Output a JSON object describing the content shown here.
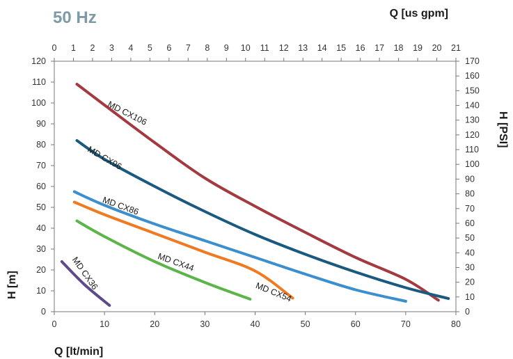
{
  "frequency_label": "50 Hz",
  "chart_data": {
    "type": "line",
    "xlabel": "Q [lt/min]",
    "ylabel": "H [m]",
    "x2label": "Q [us gpm]",
    "y2label": "H [PSI]",
    "xlim": [
      0,
      80
    ],
    "ylim": [
      0,
      120
    ],
    "x2lim": [
      0,
      21
    ],
    "y2lim": [
      0,
      170
    ],
    "xticks": [
      "0",
      "10",
      "20",
      "30",
      "40",
      "50",
      "60",
      "70",
      "80"
    ],
    "yticks": [
      "0",
      "10",
      "20",
      "30",
      "40",
      "50",
      "60",
      "70",
      "80",
      "90",
      "100",
      "110",
      "120"
    ],
    "x2ticks": [
      "0",
      "1",
      "2",
      "3",
      "4",
      "5",
      "6",
      "7",
      "8",
      "9",
      "10",
      "11",
      "12",
      "13",
      "14",
      "15",
      "16",
      "17",
      "18",
      "19",
      "20",
      "21"
    ],
    "y2ticks": [
      "0",
      "10",
      "20",
      "30",
      "40",
      "50",
      "60",
      "70",
      "80",
      "90",
      "100",
      "110",
      "120",
      "130",
      "140",
      "150",
      "160",
      "170"
    ],
    "grid": false,
    "series": [
      {
        "name": "MD CX106",
        "color": "#a23a40",
        "label_at": {
          "x": 10.5,
          "y": 98.5,
          "angle": 27
        },
        "points": [
          [
            4.5,
            109
          ],
          [
            10,
            99
          ],
          [
            20,
            81
          ],
          [
            30,
            64
          ],
          [
            40,
            50.5
          ],
          [
            50,
            38
          ],
          [
            60,
            26
          ],
          [
            70,
            15.5
          ],
          [
            76.5,
            5.5
          ]
        ]
      },
      {
        "name": "MD CX96",
        "color": "#1a5980",
        "label_at": {
          "x": 6.5,
          "y": 77,
          "angle": 30
        },
        "points": [
          [
            4.5,
            82
          ],
          [
            10,
            73
          ],
          [
            20,
            60
          ],
          [
            30,
            48
          ],
          [
            40,
            37
          ],
          [
            50,
            27.5
          ],
          [
            60,
            19
          ],
          [
            70,
            11.5
          ],
          [
            78.5,
            6.3
          ]
        ]
      },
      {
        "name": "MD CX86",
        "color": "#3b8fce",
        "label_at": {
          "x": 9.5,
          "y": 52.5,
          "angle": 20
        },
        "points": [
          [
            4,
            57.5
          ],
          [
            10,
            51
          ],
          [
            20,
            42
          ],
          [
            30,
            34
          ],
          [
            40,
            26
          ],
          [
            50,
            18
          ],
          [
            60,
            10.5
          ],
          [
            70,
            5
          ]
        ]
      },
      {
        "name": "MD CX54",
        "color": "#f07a22",
        "label_at": {
          "x": 40,
          "y": 11.5,
          "angle": 22
        },
        "points": [
          [
            4,
            52.5
          ],
          [
            10,
            46.5
          ],
          [
            20,
            37.5
          ],
          [
            30,
            28.5
          ],
          [
            40,
            19.5
          ],
          [
            47.5,
            6.5
          ]
        ]
      },
      {
        "name": "MD CX44",
        "color": "#5cb548",
        "label_at": {
          "x": 20.5,
          "y": 25.5,
          "angle": 20
        },
        "points": [
          [
            4.5,
            43.5
          ],
          [
            10,
            36
          ],
          [
            20,
            24
          ],
          [
            30,
            14
          ],
          [
            39,
            6
          ]
        ]
      },
      {
        "name": "MD CX36",
        "color": "#5e4a89",
        "label_at": {
          "x": 3.5,
          "y": 25,
          "angle": 55
        },
        "points": [
          [
            1.5,
            24
          ],
          [
            6,
            13
          ],
          [
            11,
            3
          ]
        ]
      }
    ]
  }
}
